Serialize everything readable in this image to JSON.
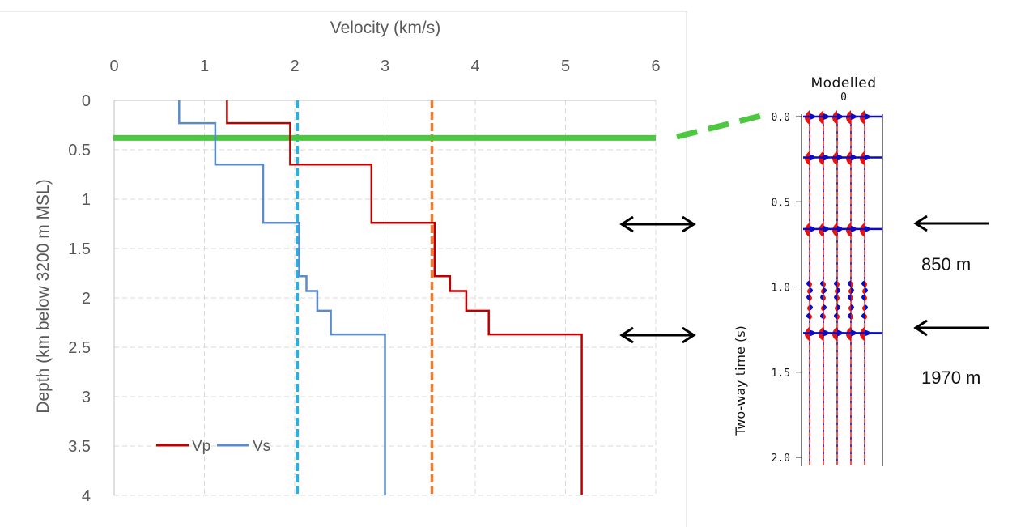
{
  "chart_data": [
    {
      "type": "line",
      "title": "",
      "xlabel": "Velocity (km/s)",
      "ylabel": "Depth (km below 3200 m MSL)",
      "xlim": [
        0,
        6
      ],
      "ylim": [
        0,
        4
      ],
      "y_inverted": true,
      "x_axis_position": "top",
      "x_ticks": [
        "0",
        "1",
        "2",
        "3",
        "4",
        "5",
        "6"
      ],
      "y_ticks": [
        "0",
        "0.5",
        "1",
        "1.5",
        "2",
        "2.5",
        "3",
        "3.5",
        "4"
      ],
      "grid": true,
      "legend_position": "bottom-left",
      "series": [
        {
          "name": "Vp",
          "color": "#c00000",
          "step_points": [
            [
              1.25,
              0
            ],
            [
              1.25,
              0.23
            ],
            [
              1.95,
              0.23
            ],
            [
              1.95,
              0.65
            ],
            [
              2.85,
              0.65
            ],
            [
              2.85,
              1.24
            ],
            [
              3.55,
              1.24
            ],
            [
              3.55,
              1.78
            ],
            [
              3.72,
              1.78
            ],
            [
              3.72,
              1.93
            ],
            [
              3.9,
              1.93
            ],
            [
              3.9,
              2.13
            ],
            [
              4.15,
              2.13
            ],
            [
              4.15,
              2.37
            ],
            [
              5.18,
              2.37
            ],
            [
              5.18,
              4
            ]
          ]
        },
        {
          "name": "Vs",
          "color": "#5b8cc8",
          "step_points": [
            [
              0.72,
              0
            ],
            [
              0.72,
              0.23
            ],
            [
              1.12,
              0.23
            ],
            [
              1.12,
              0.65
            ],
            [
              1.65,
              0.65
            ],
            [
              1.65,
              1.24
            ],
            [
              2.05,
              1.24
            ],
            [
              2.05,
              1.78
            ],
            [
              2.13,
              1.78
            ],
            [
              2.13,
              1.93
            ],
            [
              2.25,
              1.93
            ],
            [
              2.25,
              2.13
            ],
            [
              2.4,
              2.13
            ],
            [
              2.4,
              2.37
            ],
            [
              3.0,
              2.37
            ],
            [
              3.0,
              4
            ]
          ]
        }
      ],
      "reference_lines": [
        {
          "orientation": "vertical",
          "value": 2.03,
          "color": "#1eb4e8",
          "style": "dashed"
        },
        {
          "orientation": "vertical",
          "value": 3.52,
          "color": "#ed7d31",
          "style": "dashed"
        },
        {
          "orientation": "horizontal",
          "value": 0.38,
          "color": "#4cc840",
          "style": "solid"
        }
      ]
    },
    {
      "type": "line",
      "title": "Modelled",
      "xlabel": "",
      "x_ticks": [
        "0"
      ],
      "ylabel": "Two-way time (s)",
      "ylim": [
        0,
        2.0
      ],
      "y_inverted": true,
      "y_ticks": [
        "0.0",
        "0.5",
        "1.0",
        "1.5",
        "2.0"
      ],
      "trace_count": 5,
      "trace_colors": {
        "positive": "#e8140a",
        "negative": "#0a0ac8"
      },
      "strong_reflections": [
        0.0,
        0.24,
        0.66,
        1.27
      ],
      "minor_reflections": [
        0.98,
        1.02,
        1.06,
        1.12,
        1.17
      ],
      "annotations": [
        {
          "text": "850 m",
          "time": 0.66
        },
        {
          "text": "1970 m",
          "time": 1.27
        }
      ]
    }
  ]
}
